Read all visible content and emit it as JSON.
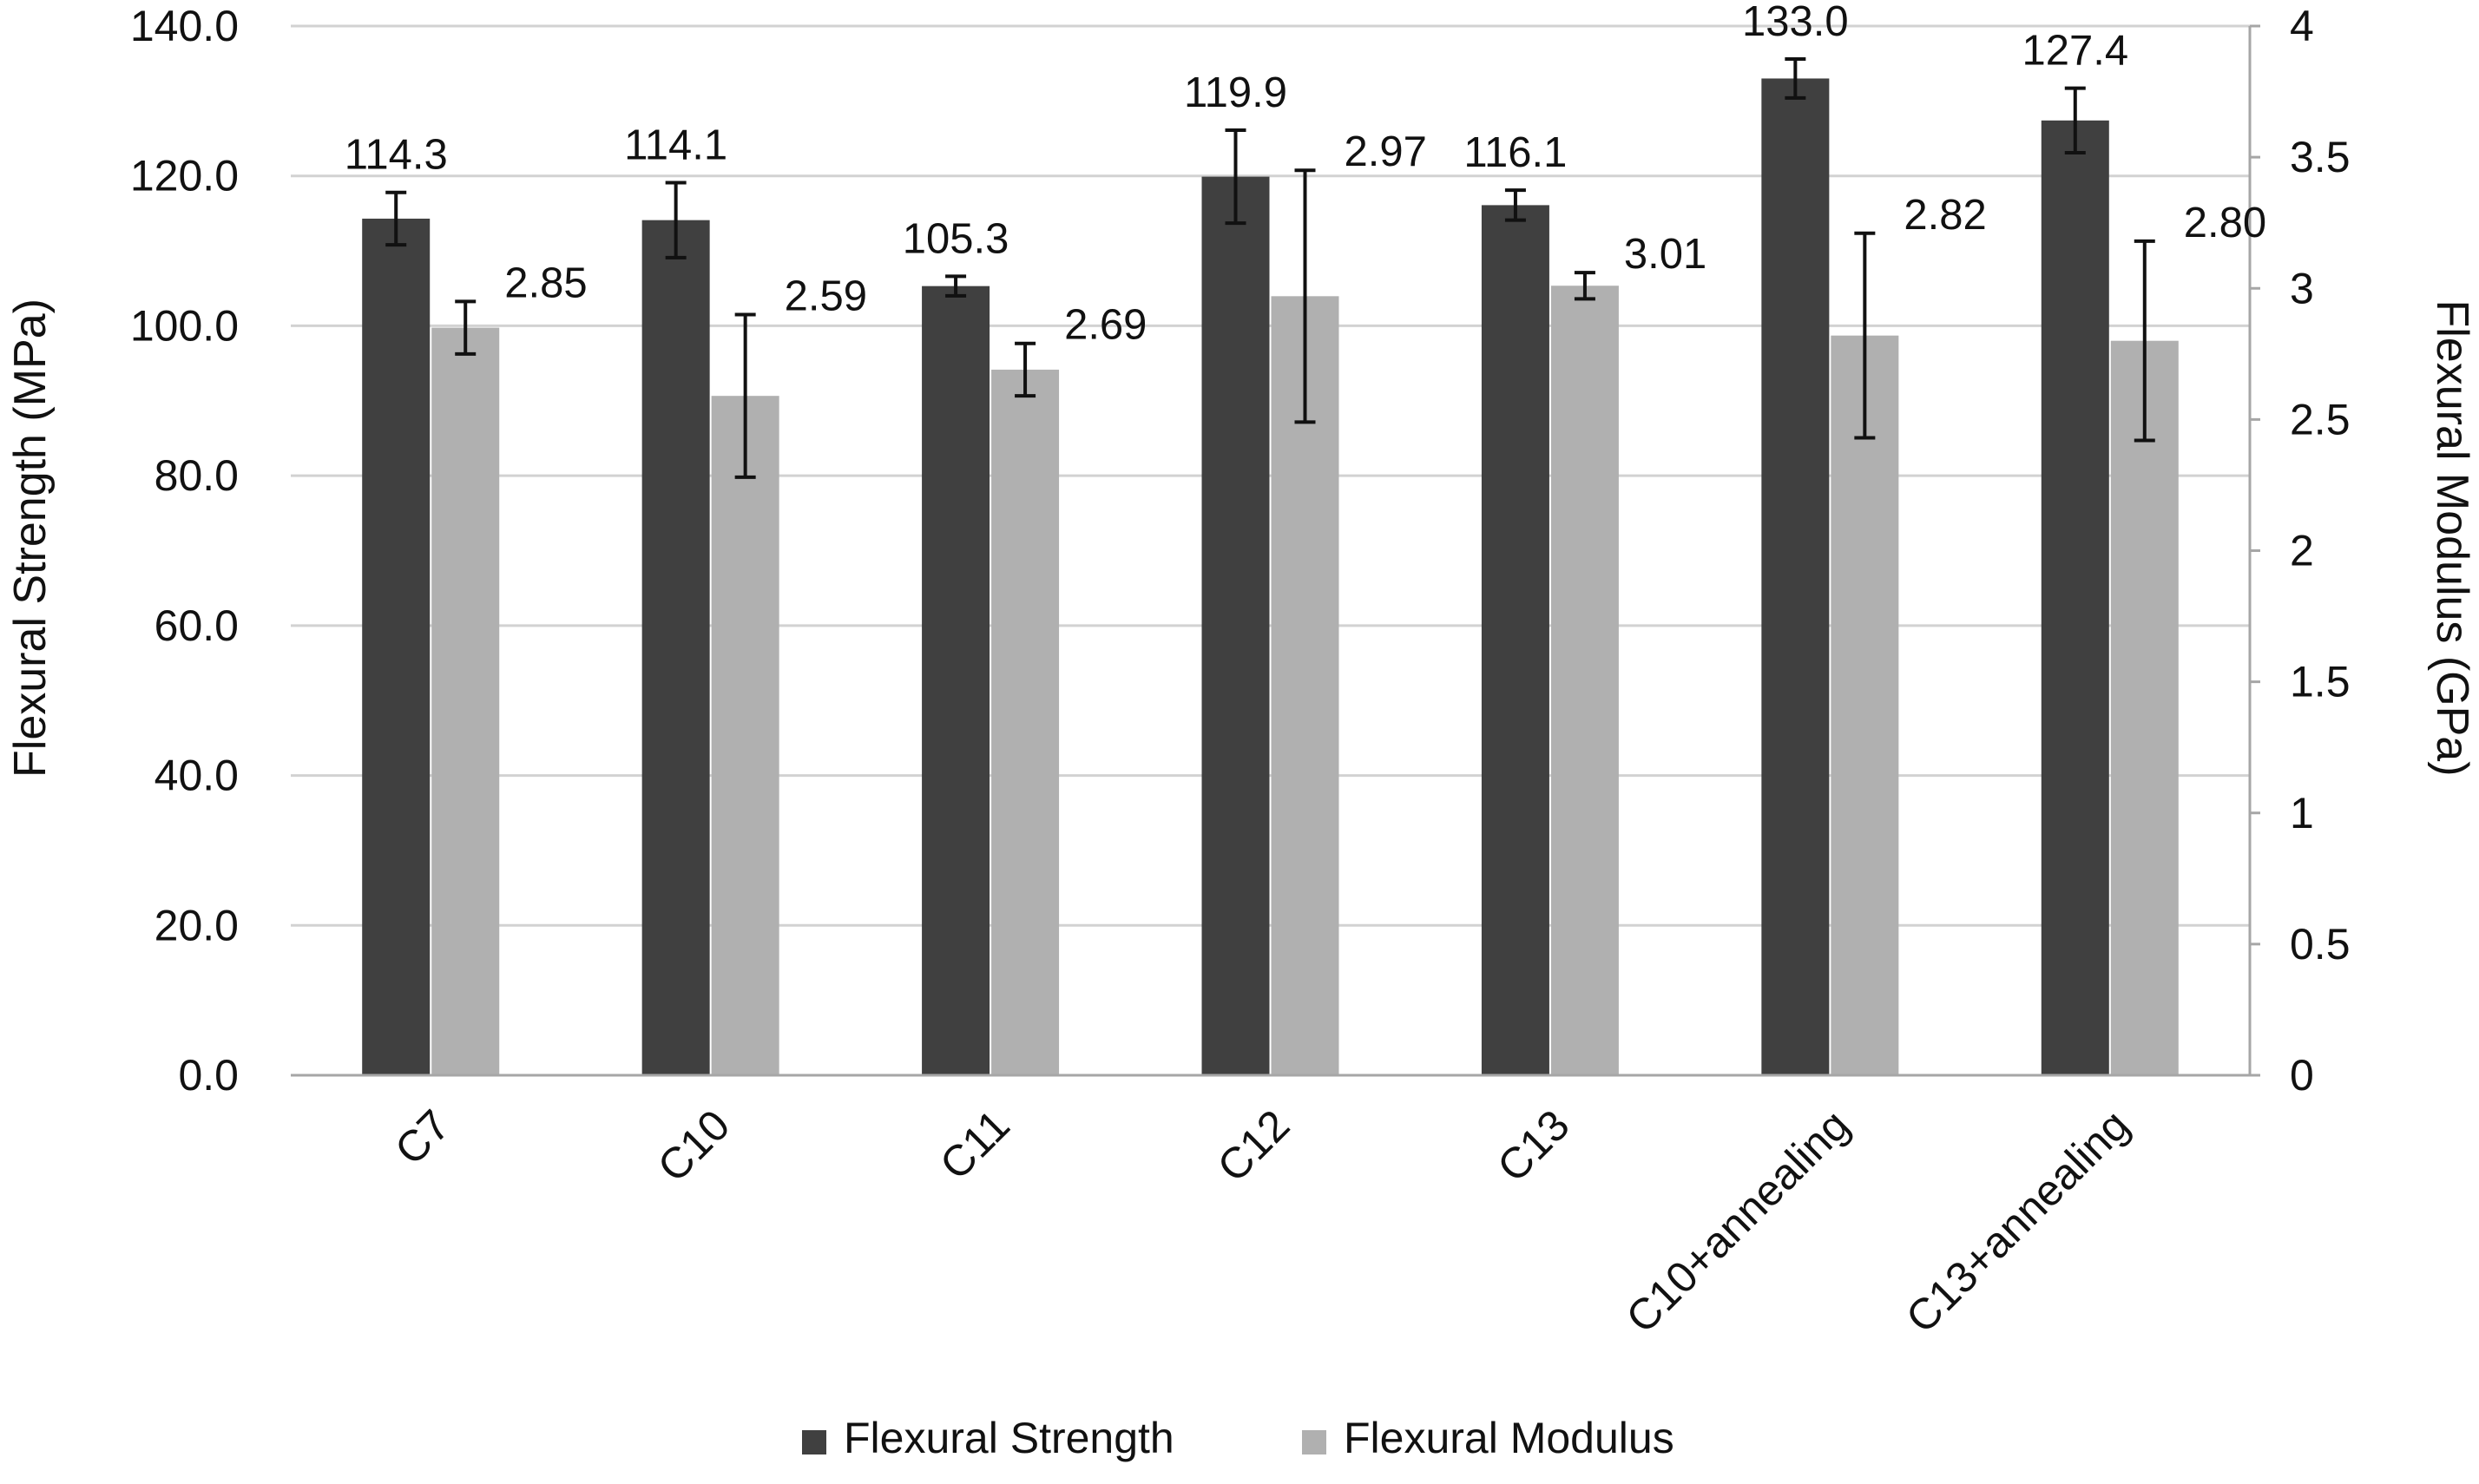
{
  "chart_data": {
    "type": "bar",
    "categories": [
      "C7",
      "C10",
      "C11",
      "C12",
      "C13",
      "C10+annealing",
      "C13+annealing"
    ],
    "series": [
      {
        "name": "Flexural Strength",
        "axis": "left",
        "color": "#404040",
        "values": [
          114.3,
          114.1,
          105.3,
          119.9,
          116.1,
          133.0,
          127.4
        ],
        "labels": [
          "114.3",
          "114.1",
          "105.3",
          "119.9",
          "116.1",
          "133.0",
          "127.4"
        ],
        "error": [
          3.5,
          5.0,
          1.3,
          6.2,
          2.0,
          2.6,
          4.3
        ]
      },
      {
        "name": "Flexural Modulus",
        "axis": "right",
        "color": "#b0b0b0",
        "values": [
          2.85,
          2.59,
          2.69,
          2.97,
          3.01,
          2.82,
          2.8
        ],
        "labels": [
          "2.85",
          "2.59",
          "2.69",
          "2.97",
          "3.01",
          "2.82",
          "2.80"
        ],
        "error": [
          0.1,
          0.31,
          0.1,
          0.48,
          0.05,
          0.39,
          0.38
        ]
      }
    ],
    "y_left": {
      "label": "Flexural Strength (MPa)",
      "range": [
        0,
        140
      ],
      "ticks": [
        0,
        20,
        40,
        60,
        80,
        100,
        120,
        140
      ],
      "tick_labels": [
        "0.0",
        "20.0",
        "40.0",
        "60.0",
        "80.0",
        "100.0",
        "120.0",
        "140.0"
      ]
    },
    "y_right": {
      "label": "Flexural Modulus (GPa)",
      "range": [
        0,
        4
      ],
      "ticks": [
        0,
        0.5,
        1,
        1.5,
        2,
        2.5,
        3,
        3.5,
        4
      ],
      "tick_labels": [
        "0",
        "0.5",
        "1",
        "1.5",
        "2",
        "2.5",
        "3",
        "3.5",
        "4"
      ]
    },
    "grid": true,
    "legend_position": "bottom"
  }
}
